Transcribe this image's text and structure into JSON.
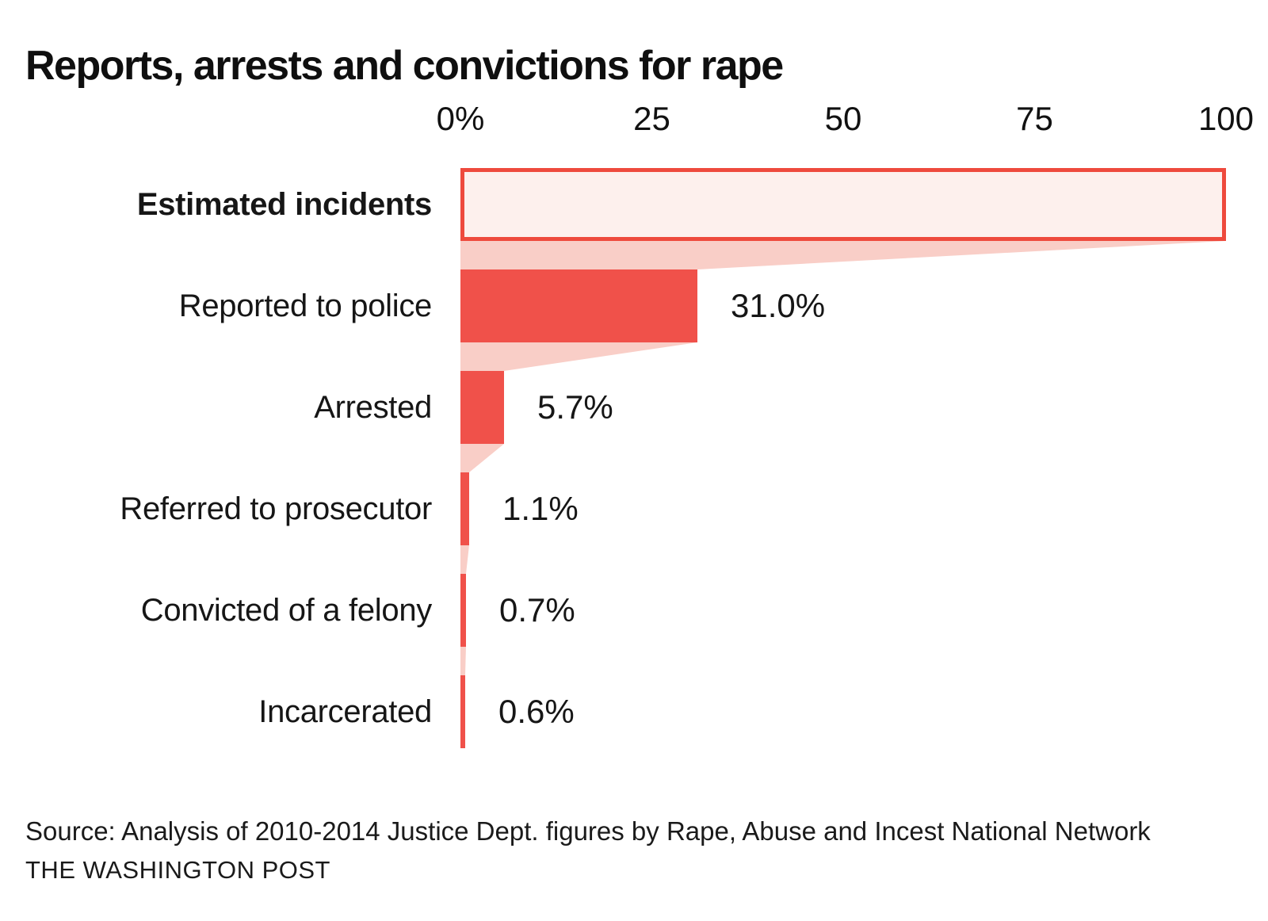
{
  "title": "Reports, arrests and convictions for rape",
  "colors": {
    "bar_red": "#F0514A",
    "outline_red": "#EE4A3D",
    "outlined_fill": "#FDF0ED",
    "connector_pink": "#F9CEC7",
    "text": "#111111",
    "background": "#FFFFFF"
  },
  "chart_data": {
    "type": "bar",
    "subtype": "horizontal-funnel",
    "title": "Reports, arrests and convictions for rape",
    "unit": "percent",
    "categories": [
      "Estimated incidents",
      "Reported to police",
      "Arrested",
      "Referred to prosecutor",
      "Convicted of a felony",
      "Incarcerated"
    ],
    "values": [
      100,
      31.0,
      5.7,
      1.1,
      0.7,
      0.6
    ],
    "value_labels": [
      "",
      "31.0%",
      "5.7%",
      "1.1%",
      "0.7%",
      "0.6%"
    ],
    "emphasized_category_index": 0,
    "first_bar_style": "outlined",
    "x_ticks": [
      {
        "value": 0,
        "label": "0%"
      },
      {
        "value": 25,
        "label": "25"
      },
      {
        "value": 50,
        "label": "50"
      },
      {
        "value": 75,
        "label": "75"
      },
      {
        "value": 100,
        "label": "100"
      }
    ],
    "xlim": [
      0,
      100
    ],
    "grid": false,
    "legend": false,
    "connectors_between_bars": true
  },
  "footer": {
    "source": "Source: Analysis of 2010-2014 Justice Dept. figures by Rape, Abuse and Incest National Network",
    "attribution": "THE WASHINGTON POST"
  }
}
